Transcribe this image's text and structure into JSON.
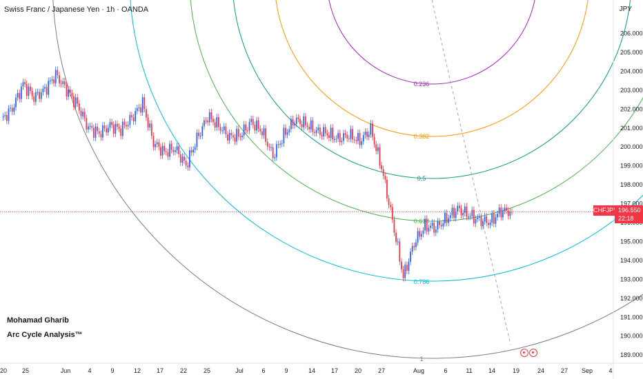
{
  "header": {
    "title": "Swiss Franc / Japanese Yen · 1h · OANDA"
  },
  "annotations": {
    "author": "Mohamad Gharib",
    "study": "Arc Cycle Analysis™"
  },
  "price_axis": {
    "unit": "JPY",
    "symbol": "CHFJPY",
    "last_price": "196.550",
    "countdown": "22:18"
  },
  "colors": {
    "up_candle": "#2962ff",
    "down_candle": "#f23645",
    "arc_0236": "#9c27b0",
    "arc_0382": "#ff9800",
    "arc_05": "#089981",
    "arc_0618": "#4caf50",
    "arc_0786": "#00bcd4",
    "arc_1": "#787b86",
    "last_price_line": "#f23645"
  },
  "icons": [
    "event-marker-icon",
    "event-marker-icon"
  ],
  "chart_data": {
    "type": "line",
    "title": "Swiss Franc / Japanese Yen · 1h · OANDA",
    "ylabel": "JPY",
    "ylim": [
      188.7,
      207.0
    ],
    "y_ticks": [
      "206.000",
      "205.000",
      "204.000",
      "203.000",
      "202.000",
      "201.000",
      "200.000",
      "199.000",
      "198.000",
      "197.000",
      "196.000",
      "195.000",
      "194.000",
      "193.000",
      "192.000",
      "191.000",
      "190.000",
      "189.000"
    ],
    "x_ticks": [
      "20",
      "25",
      "Jun",
      "4",
      "9",
      "12",
      "17",
      "22",
      "25",
      "Jul",
      "6",
      "9",
      "14",
      "17",
      "20",
      "27",
      "Aug",
      "6",
      "11",
      "14",
      "19",
      "24",
      "27",
      "Sep",
      "4"
    ],
    "grid": false,
    "series": [
      {
        "name": "CHFJPY",
        "x": [
          "May 20",
          "May 22",
          "May 25",
          "May 27",
          "May 29",
          "Jun 1",
          "Jun 3",
          "Jun 5",
          "Jun 7",
          "Jun 9",
          "Jun 11",
          "Jun 13",
          "Jun 15",
          "Jun 17",
          "Jun 19",
          "Jun 21",
          "Jun 23",
          "Jun 25",
          "Jun 27",
          "Jun 30",
          "Jul 2",
          "Jul 4",
          "Jul 6",
          "Jul 8",
          "Jul 10",
          "Jul 12",
          "Jul 14",
          "Jul 16",
          "Jul 18",
          "Jul 20",
          "Jul 22",
          "Jul 24",
          "Jul 26",
          "Jul 28",
          "Jul 30",
          "Aug 1",
          "Aug 2",
          "Aug 3",
          "Aug 4",
          "Aug 5",
          "Aug 6",
          "Aug 8",
          "Aug 10",
          "Aug 11",
          "Aug 13",
          "Aug 15",
          "Aug 17",
          "Aug 18"
        ],
        "values": [
          201.4,
          202.0,
          203.3,
          202.6,
          203.0,
          203.8,
          203.0,
          202.2,
          201.0,
          200.7,
          201.1,
          200.9,
          201.5,
          202.3,
          200.2,
          199.7,
          199.9,
          199.0,
          200.4,
          201.6,
          201.1,
          200.5,
          200.6,
          201.3,
          200.8,
          199.5,
          200.6,
          201.4,
          201.2,
          200.8,
          200.7,
          200.4,
          200.6,
          200.3,
          200.9,
          198.9,
          196.1,
          193.1,
          194.9,
          195.8,
          195.7,
          196.2,
          196.7,
          196.4,
          196.1,
          196.0,
          196.6,
          196.55
        ]
      }
    ],
    "arcs": [
      {
        "level": "0.236",
        "color": "#9c27b0"
      },
      {
        "level": "0.382",
        "color": "#ff9800"
      },
      {
        "level": "0.5",
        "color": "#089981"
      },
      {
        "level": "0.618",
        "color": "#4caf50"
      },
      {
        "level": "0.786",
        "color": "#00bcd4"
      },
      {
        "level": "1",
        "color": "#787b86"
      }
    ],
    "last_price": 196.55
  }
}
